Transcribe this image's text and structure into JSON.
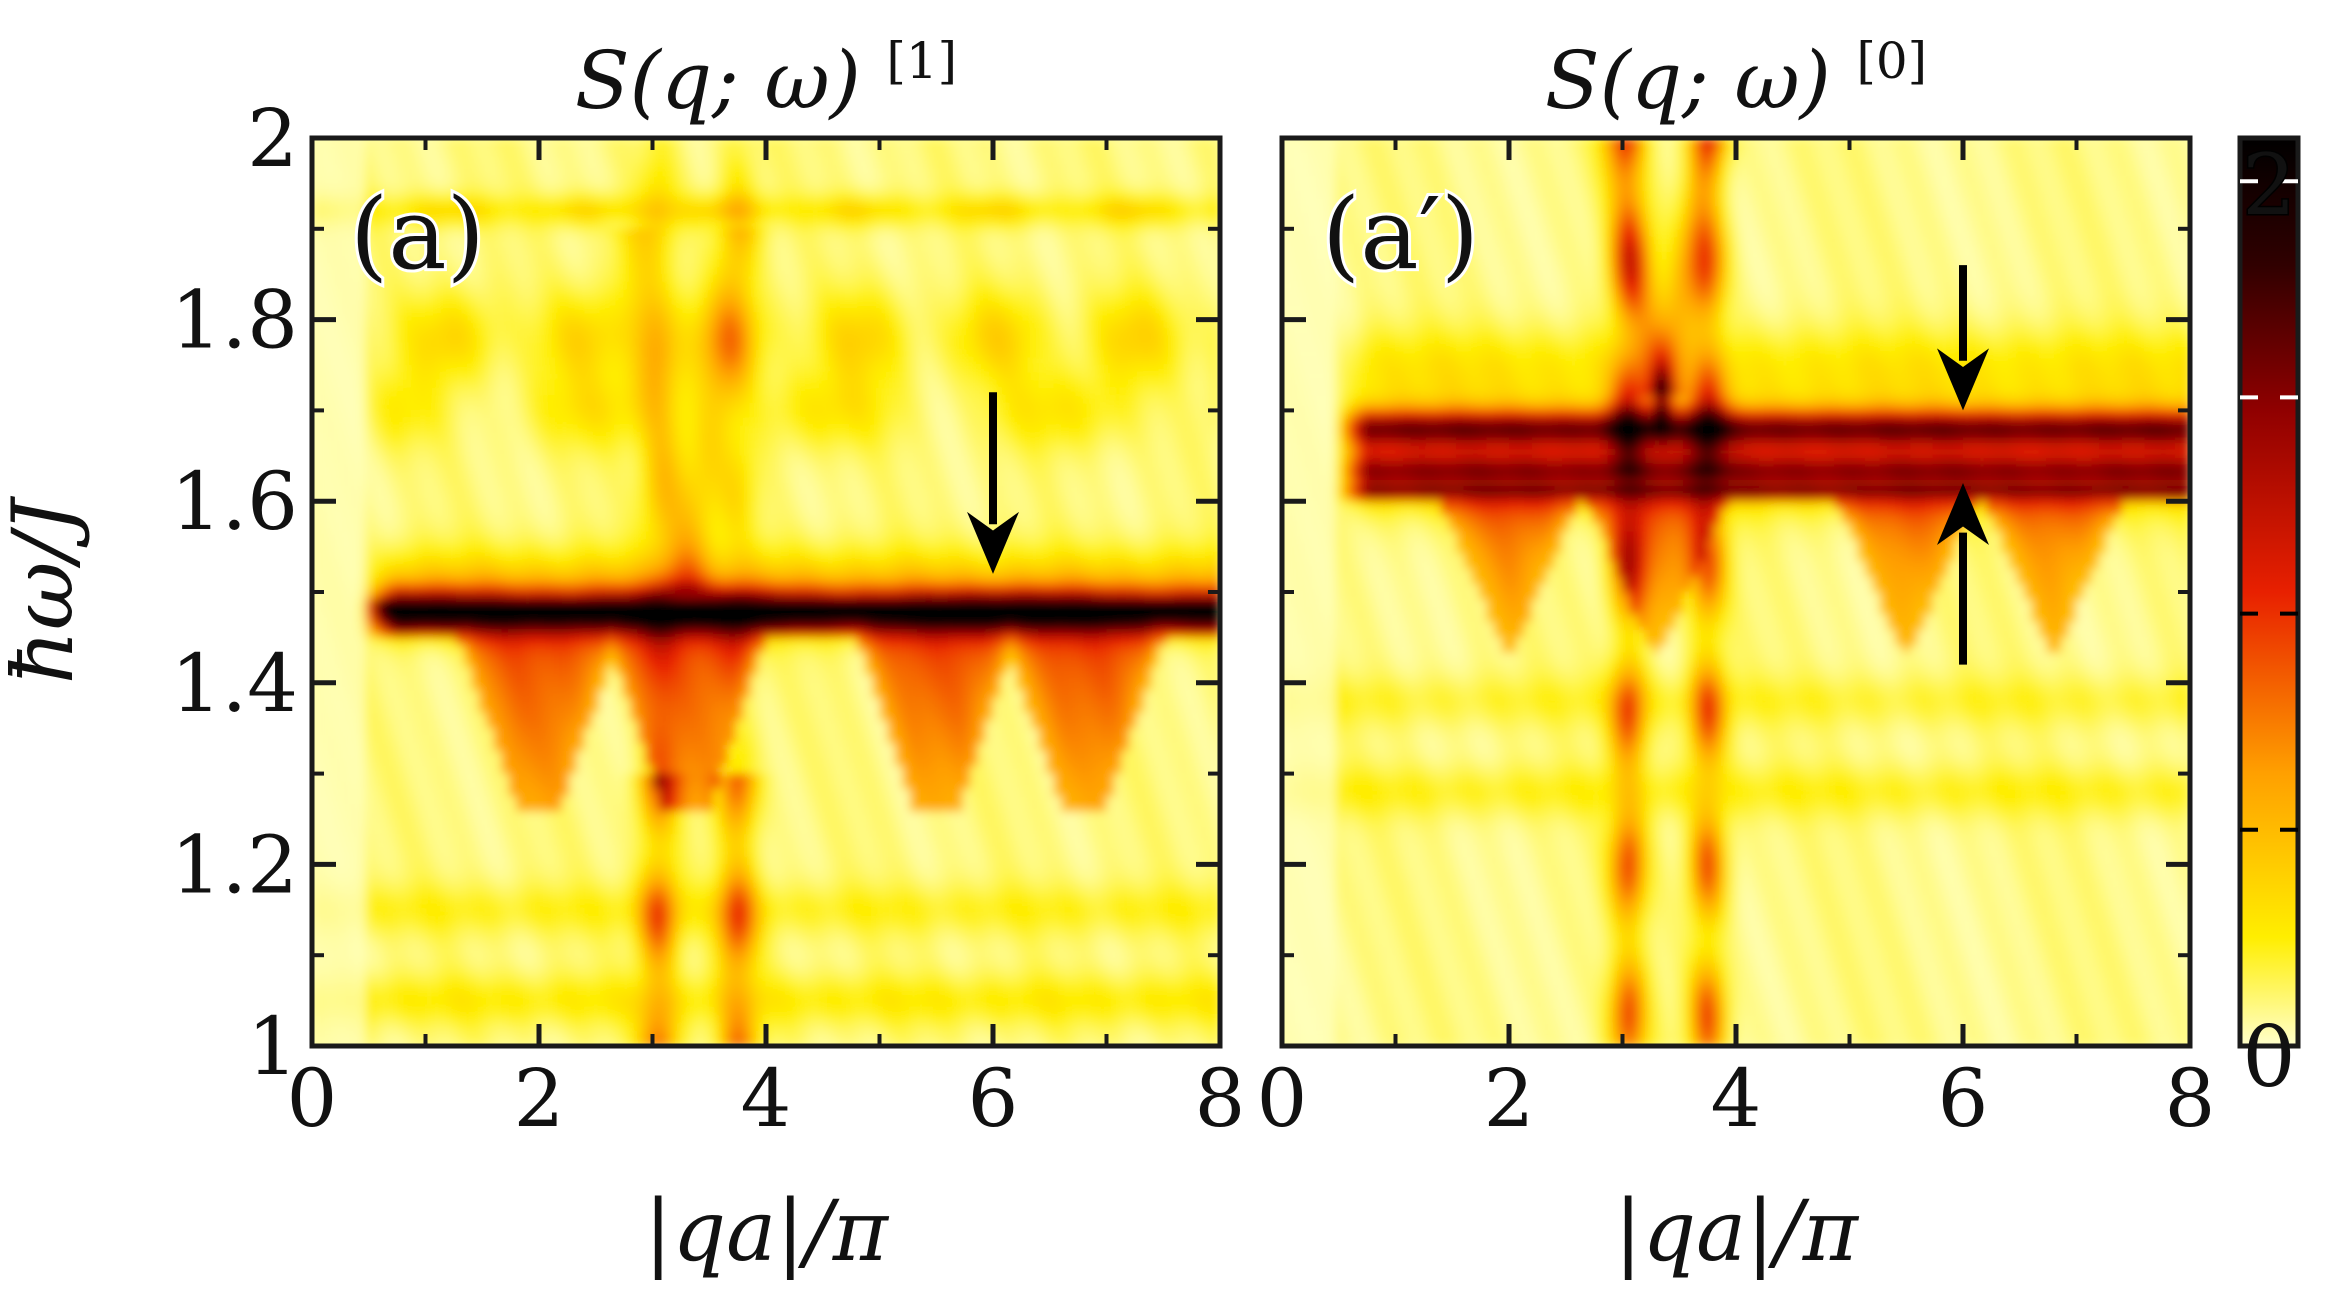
{
  "chart_data": [
    {
      "type": "heatmap",
      "panel_label": "(a)",
      "title_main": "S(q; ω)",
      "title_sup": "[1]",
      "xlabel": "|qa|/π",
      "ylabel": "ħω/J",
      "xlim": [
        0,
        8
      ],
      "ylim": [
        1.0,
        2.0
      ],
      "xticks": [
        0,
        2,
        4,
        6,
        8
      ],
      "yticks": [
        1,
        1.2,
        1.4,
        1.6,
        1.8,
        2
      ],
      "ytick_labels": [
        "1",
        "1.2",
        "1.4",
        "1.6",
        "1.8",
        "2"
      ],
      "features": {
        "flat_band_energy": 1.48,
        "upper_bands": [
          1.78,
          1.92
        ],
        "band_minima": [
          {
            "q": 2.0,
            "omega": 1.31
          },
          {
            "q": 3.3,
            "omega": 1.27
          },
          {
            "q": 5.5,
            "omega": 1.31
          },
          {
            "q": 6.8,
            "omega": 1.31
          }
        ],
        "band_maxima": [
          {
            "q": 1.0,
            "omega": 1.48
          },
          {
            "q": 2.6,
            "omega": 1.49
          },
          {
            "q": 4.5,
            "omega": 1.49
          },
          {
            "q": 6.0,
            "omega": 1.49
          }
        ],
        "low_energy_column_q": [
          3.0,
          4.0
        ]
      },
      "arrows": [
        {
          "q": 6.0,
          "omega_from": 1.72,
          "omega_to": 1.52,
          "direction": "down"
        }
      ]
    },
    {
      "type": "heatmap",
      "panel_label": "(a′)",
      "title_main": "S(q; ω)",
      "title_sup": "[0]",
      "xlabel": "|qa|/π",
      "ylabel": "",
      "xlim": [
        0,
        8
      ],
      "ylim": [
        1.0,
        2.0
      ],
      "xticks": [
        0,
        2,
        4,
        6,
        8
      ],
      "yticks": [
        1,
        1.2,
        1.4,
        1.6,
        1.8,
        2
      ],
      "features": {
        "flat_band_energies": [
          1.68,
          1.63
        ],
        "band_minima": [
          {
            "q": 2.0,
            "omega": 1.47
          },
          {
            "q": 3.3,
            "omega": 1.47
          },
          {
            "q": 5.5,
            "omega": 1.47
          },
          {
            "q": 6.8,
            "omega": 1.47
          }
        ],
        "vertical_column_q": [
          3.0,
          4.0
        ]
      },
      "arrows": [
        {
          "q": 6.0,
          "omega_from": 1.86,
          "omega_to": 1.7,
          "direction": "down"
        },
        {
          "q": 6.0,
          "omega_from": 1.42,
          "omega_to": 1.62,
          "direction": "up"
        }
      ]
    }
  ],
  "colorbar": {
    "min": 0,
    "max": 2.1,
    "tick_labels": [
      "0",
      "2"
    ],
    "dashed_levels": [
      0.5,
      1.0,
      1.5,
      2.0
    ],
    "colors": [
      "#ffffcc",
      "#ffe800",
      "#ff9000",
      "#e82000",
      "#900000",
      "#300000",
      "#000000"
    ]
  }
}
